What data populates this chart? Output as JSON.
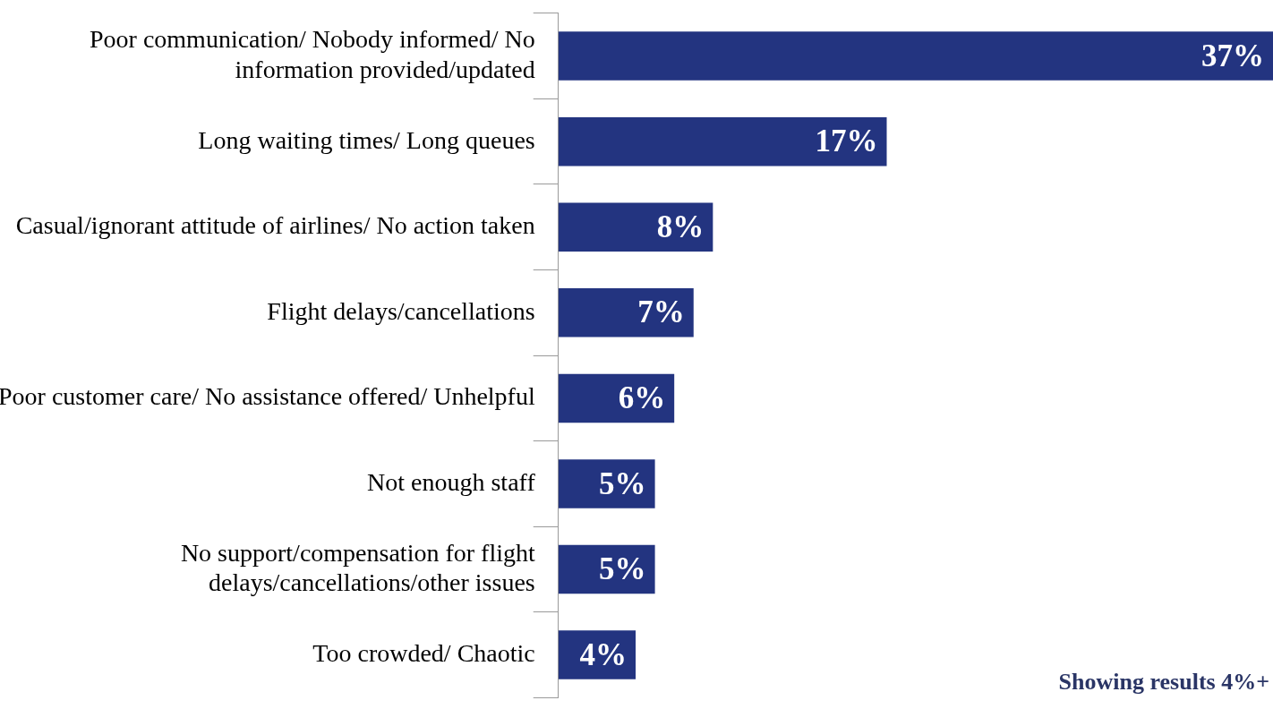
{
  "chart_data": {
    "type": "bar",
    "orientation": "horizontal",
    "categories": [
      "Poor communication/ Nobody informed/ No information provided/updated",
      "Long waiting times/ Long queues",
      "Casual/ignorant attitude of airlines/ No action taken",
      "Flight delays/cancellations",
      "Poor customer care/ No assistance offered/ Unhelpful",
      "Not enough staff",
      "No support/compensation for flight delays/cancellations/other issues",
      "Too crowded/ Chaotic"
    ],
    "values": [
      37,
      17,
      8,
      7,
      6,
      5,
      5,
      4
    ],
    "value_labels": [
      "37%",
      "17%",
      "8%",
      "7%",
      "6%",
      "5%",
      "5%",
      "4%"
    ],
    "color": "#233480",
    "xlim": [
      0,
      37
    ],
    "annotations": [
      "Showing results 4%+"
    ],
    "legend": false,
    "grid": false
  }
}
